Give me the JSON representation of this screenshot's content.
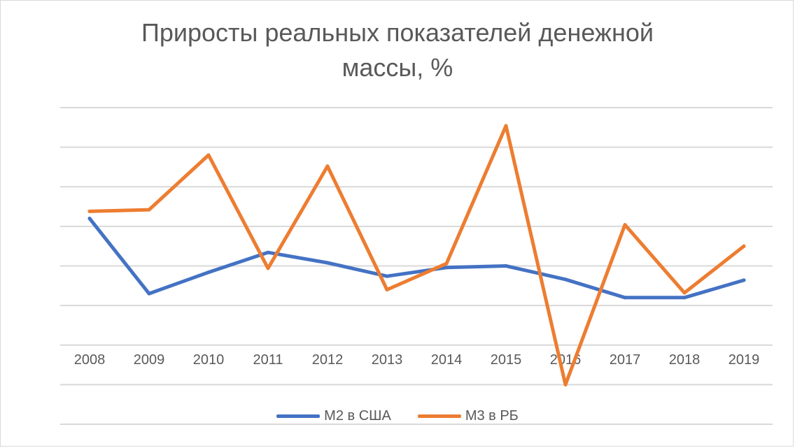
{
  "chart_data": {
    "type": "line",
    "title": "Приросты реальных показателей денежной массы, %",
    "title_lines": [
      "Приросты реальных показателей денежной",
      "массы, %"
    ],
    "categories": [
      "2008",
      "2009",
      "2010",
      "2011",
      "2012",
      "2013",
      "2014",
      "2015",
      "2016",
      "2017",
      "2018",
      "2019"
    ],
    "series": [
      {
        "name": "М2 в США",
        "color": "#4472C4",
        "values": [
          60,
          -35,
          -8,
          17,
          4,
          -13,
          -2,
          0,
          -17,
          -40,
          -40,
          -18
        ]
      },
      {
        "name": "М3 в РБ",
        "color": "#ED7D31",
        "values": [
          69,
          71,
          140,
          -3,
          126,
          -30,
          3,
          177,
          -150,
          52,
          -34,
          25
        ]
      }
    ],
    "ylim": [
      -200,
      200
    ],
    "ystep": 50,
    "y_tick_labels_visible": false,
    "grid": true,
    "legend": "bottom",
    "xlabel": "",
    "ylabel": ""
  }
}
